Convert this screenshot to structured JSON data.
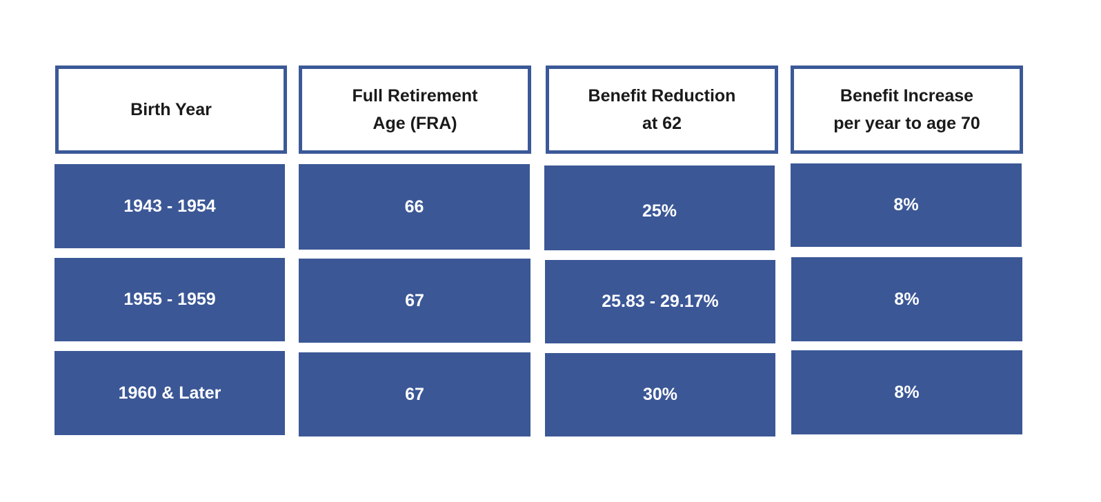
{
  "table": {
    "headers": [
      [
        "Birth Year"
      ],
      [
        "Full Retirement",
        "Age (FRA)"
      ],
      [
        "Benefit Reduction",
        "at 62"
      ],
      [
        "Benefit Increase",
        "per year to age 70"
      ]
    ],
    "rows": [
      [
        "1943 - 1954",
        "66",
        "25%",
        "8%"
      ],
      [
        "1955 - 1959",
        "67",
        "25.83 - 29.17%",
        "8%"
      ],
      [
        "1960 & Later",
        "67",
        "30%",
        "8%"
      ]
    ]
  },
  "colors": {
    "header_border": "#3b5998",
    "cell_fill": "#3b5796",
    "cell_text": "#ffffff",
    "header_text": "#1a1a1a"
  }
}
